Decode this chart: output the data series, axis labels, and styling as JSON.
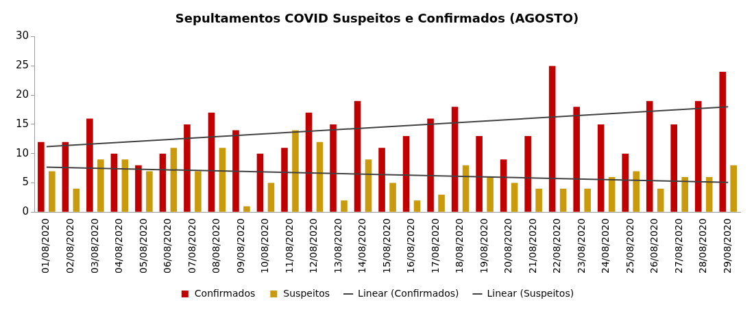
{
  "chart_data": {
    "type": "bar",
    "title": "Sepultamentos COVID Suspeitos e Confirmados (AGOSTO)",
    "categories": [
      "01/08/2020",
      "02/08/2020",
      "03/08/2020",
      "04/08/2020",
      "05/08/2020",
      "06/08/2020",
      "07/08/2020",
      "08/08/2020",
      "09/08/2020",
      "10/08/2020",
      "11/08/2020",
      "12/08/2020",
      "13/08/2020",
      "14/08/2020",
      "15/08/2020",
      "16/08/2020",
      "17/08/2020",
      "18/08/2020",
      "19/08/2020",
      "20/08/2020",
      "21/08/2020",
      "22/08/2020",
      "23/08/2020",
      "24/08/2020",
      "25/08/2020",
      "26/08/2020",
      "27/08/2020",
      "28/08/2020",
      "29/08/2020"
    ],
    "series": [
      {
        "name": "Confirmados",
        "color": "#c00000",
        "values": [
          12,
          12,
          16,
          10,
          8,
          10,
          15,
          17,
          14,
          10,
          11,
          17,
          15,
          19,
          11,
          13,
          16,
          18,
          13,
          9,
          13,
          25,
          18,
          15,
          10,
          19,
          15,
          19,
          24
        ]
      },
      {
        "name": "Suspeitos",
        "color": "#c89a0c",
        "values": [
          7,
          4,
          9,
          9,
          7,
          11,
          7,
          11,
          1,
          5,
          14,
          12,
          2,
          9,
          5,
          2,
          3,
          8,
          6,
          5,
          4,
          4,
          4,
          6,
          7,
          4,
          6,
          6,
          8
        ]
      },
      {
        "name": "Linear (Confirmados)",
        "type": "line",
        "color": "#404040",
        "values": [
          11.2,
          null,
          null,
          null,
          null,
          null,
          null,
          null,
          null,
          null,
          null,
          null,
          null,
          null,
          null,
          null,
          null,
          null,
          null,
          null,
          null,
          null,
          null,
          null,
          null,
          null,
          null,
          null,
          18.0
        ]
      },
      {
        "name": "Linear (Suspeitos)",
        "type": "line",
        "color": "#404040",
        "values": [
          7.7,
          null,
          null,
          null,
          null,
          null,
          null,
          null,
          null,
          null,
          null,
          null,
          null,
          null,
          null,
          null,
          null,
          null,
          null,
          null,
          null,
          null,
          null,
          null,
          null,
          null,
          null,
          null,
          5.1
        ]
      }
    ],
    "ylim": [
      0,
      30
    ],
    "yticks": [
      0,
      5,
      10,
      15,
      20,
      25,
      30
    ],
    "grid": false,
    "legend": "bottom",
    "marker": "none",
    "line_style": "solid"
  }
}
